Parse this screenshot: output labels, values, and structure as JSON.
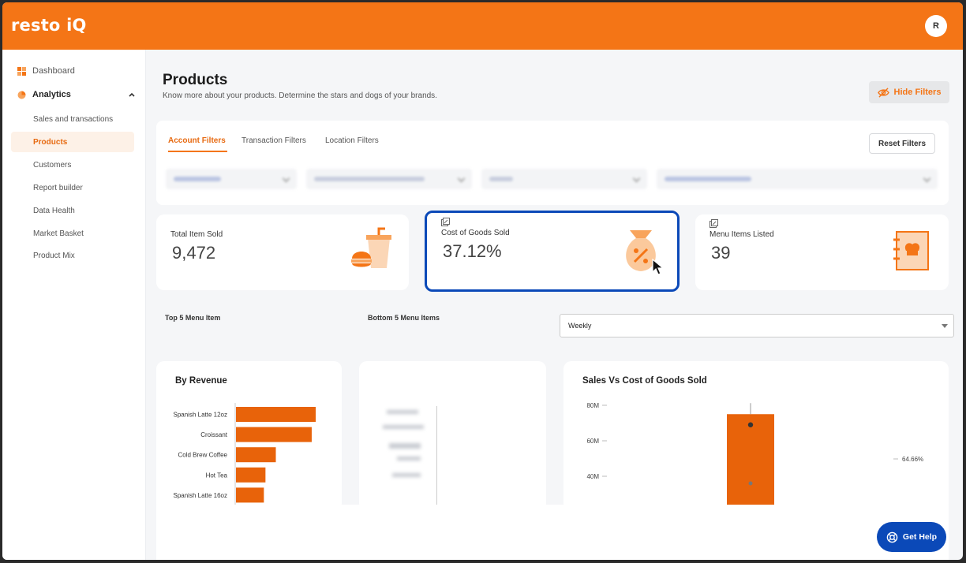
{
  "app": {
    "logo": "resto iQ",
    "avatar_initial": "R",
    "brand_color": "#f47516",
    "highlight_color": "#0b49b8"
  },
  "sidebar": {
    "items": [
      {
        "label": "Dashboard",
        "icon": "grid-icon"
      },
      {
        "label": "Analytics",
        "icon": "pie-chart-icon",
        "expanded": true
      }
    ],
    "sub_items": [
      {
        "label": "Sales and transactions"
      },
      {
        "label": "Products",
        "active": true
      },
      {
        "label": "Customers"
      },
      {
        "label": "Report builder"
      },
      {
        "label": "Data Health"
      },
      {
        "label": "Market Basket"
      },
      {
        "label": "Product Mix"
      }
    ]
  },
  "header": {
    "title": "Products",
    "subtitle": "Know more about your products. Determine the stars and dogs of your brands.",
    "hide_filters_label": "Hide Filters"
  },
  "filters": {
    "tabs": [
      "Account Filters",
      "Transaction Filters",
      "Location Filters"
    ],
    "active_tab": "Account Filters",
    "reset_label": "Reset Filters"
  },
  "stats": [
    {
      "label": "Total Item Sold",
      "value": "9,472",
      "icon": "food-drink-icon"
    },
    {
      "label": "Cost of Goods Sold",
      "value": "37.12%",
      "icon": "money-bag-percent-icon",
      "highlighted": true
    },
    {
      "label": "Menu Items Listed",
      "value": "39",
      "icon": "menu-book-icon"
    }
  ],
  "sections": {
    "top5": "Top 5 Menu Item",
    "bottom5": "Bottom 5 Menu Items",
    "period_select": "Weekly"
  },
  "charts": {
    "revenue_title": "By Revenue",
    "sales_cogs_title": "Sales Vs Cost of Goods Sold"
  },
  "chart_data": [
    {
      "type": "bar",
      "title": "By Revenue",
      "categories": [
        "Spanish Latte 12oz",
        "Croissant",
        "Cold Brew Coffee",
        "Hot Tea",
        "Spanish Latte 16oz"
      ],
      "values": [
        100,
        95,
        50,
        37,
        35
      ],
      "orientation": "horizontal",
      "color": "#e8630a"
    },
    {
      "type": "bar",
      "title": "Sales Vs Cost of Goods Sold",
      "y_ticks": [
        "80M",
        "60M",
        "40M"
      ],
      "ylim": [
        20,
        85
      ],
      "categories": [
        ""
      ],
      "values": [
        75
      ],
      "annotation": "64.66%",
      "color": "#e8630a"
    }
  ],
  "help": {
    "label": "Get Help"
  }
}
